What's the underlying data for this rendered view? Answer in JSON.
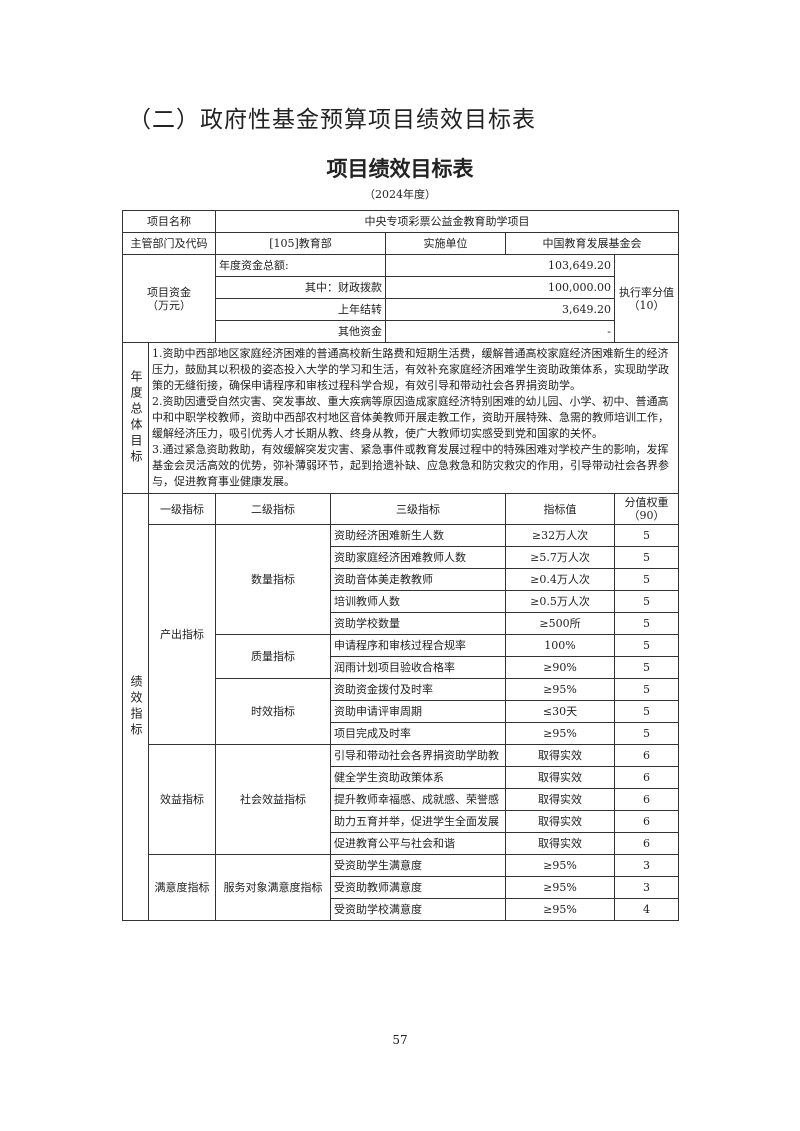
{
  "section_title": "（二）政府性基金预算项目绩效目标表",
  "table_title": "项目绩效目标表",
  "year": "（2024年度）",
  "project": {
    "name_label": "项目名称",
    "name": "中央专项彩票公益金教育助学项目",
    "dept_label": "主管部门及代码",
    "dept": "[105]教育部",
    "impl_label": "实施单位",
    "impl": "中国教育发展基金会"
  },
  "funds": {
    "label": "项目资金（万元）",
    "total_label": "年度资金总额:",
    "total": "103,649.20",
    "fiscal_label": "其中：财政拨款",
    "fiscal": "100,000.00",
    "carry_label": "上年结转",
    "carry": "3,649.20",
    "other_label": "其他资金",
    "other": "-",
    "rate_label": "执行率分值（10）"
  },
  "goals": {
    "label": "年度总体目标",
    "text": "1.资助中西部地区家庭经济困难的普通高校新生路费和短期生活费，缓解普通高校家庭经济困难新生的经济压力，鼓励其以积极的姿态投入大学的学习和生活，有效补充家庭经济困难学生资助政策体系，实现助学政策的无缝衔接，确保申请程序和审核过程科学合规，有效引导和带动社会各界捐资助学。\n2.资助因遭受自然灾害、突发事故、重大疾病等原因造成家庭经济特别困难的幼儿园、小学、初中、普通高中和中职学校教师，资助中西部农村地区音体美教师开展走教工作，资助开展特殊、急需的教师培训工作，缓解经济压力，吸引优秀人才长期从教、终身从教，使广大教师切实感受到党和国家的关怀。\n3.通过紧急资助救助，有效缓解突发灾害、紧急事件或教育发展过程中的特殊困难对学校产生的影响，发挥基金会灵活高效的优势，弥补薄弱环节，起到拾遗补缺、应急救急和防灾救灾的作用，引导带动社会各界参与，促进教育事业健康发展。"
  },
  "indicators": {
    "label": "绩效指标",
    "headers": [
      "一级指标",
      "二级指标",
      "三级指标",
      "指标值",
      "分值权重（90）"
    ],
    "groups": [
      {
        "level1": "产出指标",
        "subs": [
          {
            "level2": "数量指标",
            "rows": [
              [
                "资助经济困难新生人数",
                "≥32万人次",
                "5"
              ],
              [
                "资助家庭经济困难教师人数",
                "≥5.7万人次",
                "5"
              ],
              [
                "资助音体美走教教师",
                "≥0.4万人次",
                "5"
              ],
              [
                "培训教师人数",
                "≥0.5万人次",
                "5"
              ],
              [
                "资助学校数量",
                "≥500所",
                "5"
              ]
            ]
          },
          {
            "level2": "质量指标",
            "rows": [
              [
                "申请程序和审核过程合规率",
                "100%",
                "5"
              ],
              [
                "润雨计划项目验收合格率",
                "≥90%",
                "5"
              ]
            ]
          },
          {
            "level2": "时效指标",
            "rows": [
              [
                "资助资金拨付及时率",
                "≥95%",
                "5"
              ],
              [
                "资助申请评审周期",
                "≤30天",
                "5"
              ],
              [
                "项目完成及时率",
                "≥95%",
                "5"
              ]
            ]
          }
        ]
      },
      {
        "level1": "效益指标",
        "subs": [
          {
            "level2": "社会效益指标",
            "rows": [
              [
                "引导和带动社会各界捐资助学助教",
                "取得实效",
                "6"
              ],
              [
                "健全学生资助政策体系",
                "取得实效",
                "6"
              ],
              [
                "提升教师幸福感、成就感、荣誉感",
                "取得实效",
                "6"
              ],
              [
                "助力五育并举，促进学生全面发展",
                "取得实效",
                "6"
              ],
              [
                "促进教育公平与社会和谐",
                "取得实效",
                "6"
              ]
            ]
          }
        ]
      },
      {
        "level1": "满意度指标",
        "subs": [
          {
            "level2": "服务对象满意度指标",
            "rows": [
              [
                "受资助学生满意度",
                "≥95%",
                "3"
              ],
              [
                "受资助教师满意度",
                "≥95%",
                "3"
              ],
              [
                "受资助学校满意度",
                "≥95%",
                "4"
              ]
            ]
          }
        ]
      }
    ]
  },
  "page_number": "57"
}
